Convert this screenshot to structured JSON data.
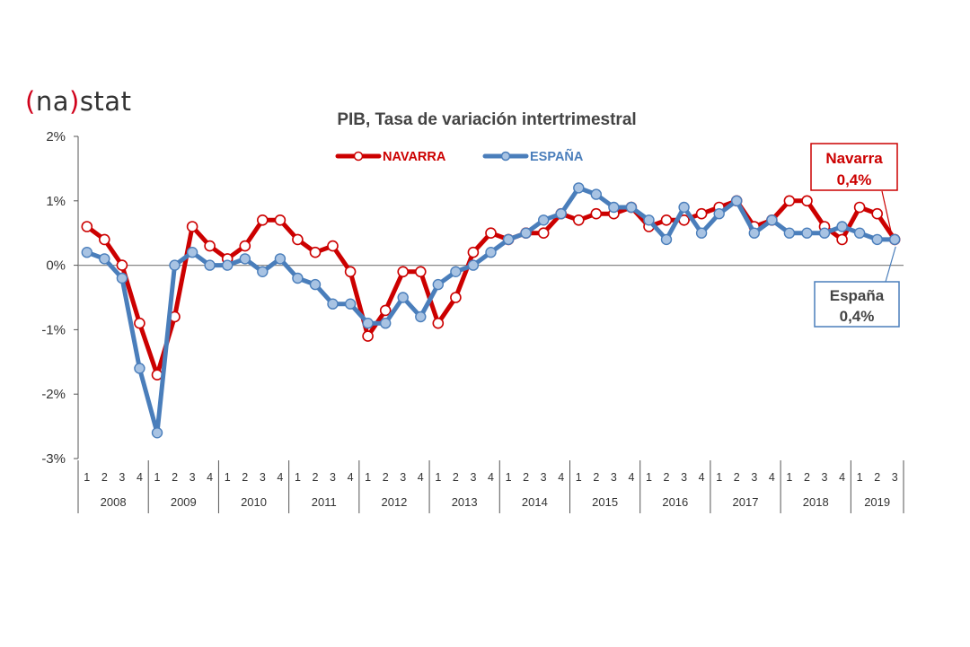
{
  "logo": {
    "open": "(",
    "brand": "na",
    "close": ")",
    "suffix": "stat"
  },
  "chart_data": {
    "type": "line",
    "title": "PIB, Tasa de variación intertrimestral",
    "ylim": [
      -3,
      2
    ],
    "y_ticks": [
      2,
      1,
      0,
      -1,
      -2,
      -3
    ],
    "y_tick_labels": [
      "2%",
      "1%",
      "0%",
      "-1%",
      "-2%",
      "-3%"
    ],
    "legend_position": "top-center",
    "quarter_labels": [
      "1",
      "2",
      "3",
      "4"
    ],
    "years": [
      {
        "label": "2008",
        "quarters": 4
      },
      {
        "label": "2009",
        "quarters": 4
      },
      {
        "label": "2010",
        "quarters": 4
      },
      {
        "label": "2011",
        "quarters": 4
      },
      {
        "label": "2012",
        "quarters": 4
      },
      {
        "label": "2013",
        "quarters": 4
      },
      {
        "label": "2014",
        "quarters": 4
      },
      {
        "label": "2015",
        "quarters": 4
      },
      {
        "label": "2016",
        "quarters": 4
      },
      {
        "label": "2017",
        "quarters": 4
      },
      {
        "label": "2018",
        "quarters": 4
      },
      {
        "label": "2019",
        "quarters": 3
      }
    ],
    "series": [
      {
        "name": "NAVARRA",
        "color": "#cc0000",
        "values": [
          0.6,
          0.4,
          0.0,
          -0.9,
          -1.7,
          -0.8,
          0.6,
          0.3,
          0.1,
          0.3,
          0.7,
          0.7,
          0.4,
          0.2,
          0.3,
          -0.1,
          -1.1,
          -0.7,
          -0.1,
          -0.1,
          -0.9,
          -0.5,
          0.2,
          0.5,
          0.4,
          0.5,
          0.5,
          0.8,
          0.7,
          0.8,
          0.8,
          0.9,
          0.6,
          0.7,
          0.7,
          0.8,
          0.9,
          1.0,
          0.6,
          0.7,
          1.0,
          1.0,
          0.6,
          0.4,
          0.9,
          0.8,
          0.4
        ]
      },
      {
        "name": "ESPAÑA",
        "color": "#4a7ebb",
        "values": [
          0.2,
          0.1,
          -0.2,
          -1.6,
          -2.6,
          0.0,
          0.2,
          0.0,
          0.0,
          0.1,
          -0.1,
          0.1,
          -0.2,
          -0.3,
          -0.6,
          -0.6,
          -0.9,
          -0.9,
          -0.5,
          -0.8,
          -0.3,
          -0.1,
          0.0,
          0.2,
          0.4,
          0.5,
          0.7,
          0.8,
          1.2,
          1.1,
          0.9,
          0.9,
          0.7,
          0.4,
          0.9,
          0.5,
          0.8,
          1.0,
          0.5,
          0.7,
          0.5,
          0.5,
          0.5,
          0.6,
          0.5,
          0.4,
          0.4
        ]
      }
    ],
    "annotations": [
      {
        "name": "navarra-callout",
        "line1": "Navarra",
        "line2": "0,4%",
        "color": "#cc0000"
      },
      {
        "name": "espana-callout",
        "line1": "España",
        "line2": "0,4%",
        "color": "#4a7ebb"
      }
    ]
  }
}
